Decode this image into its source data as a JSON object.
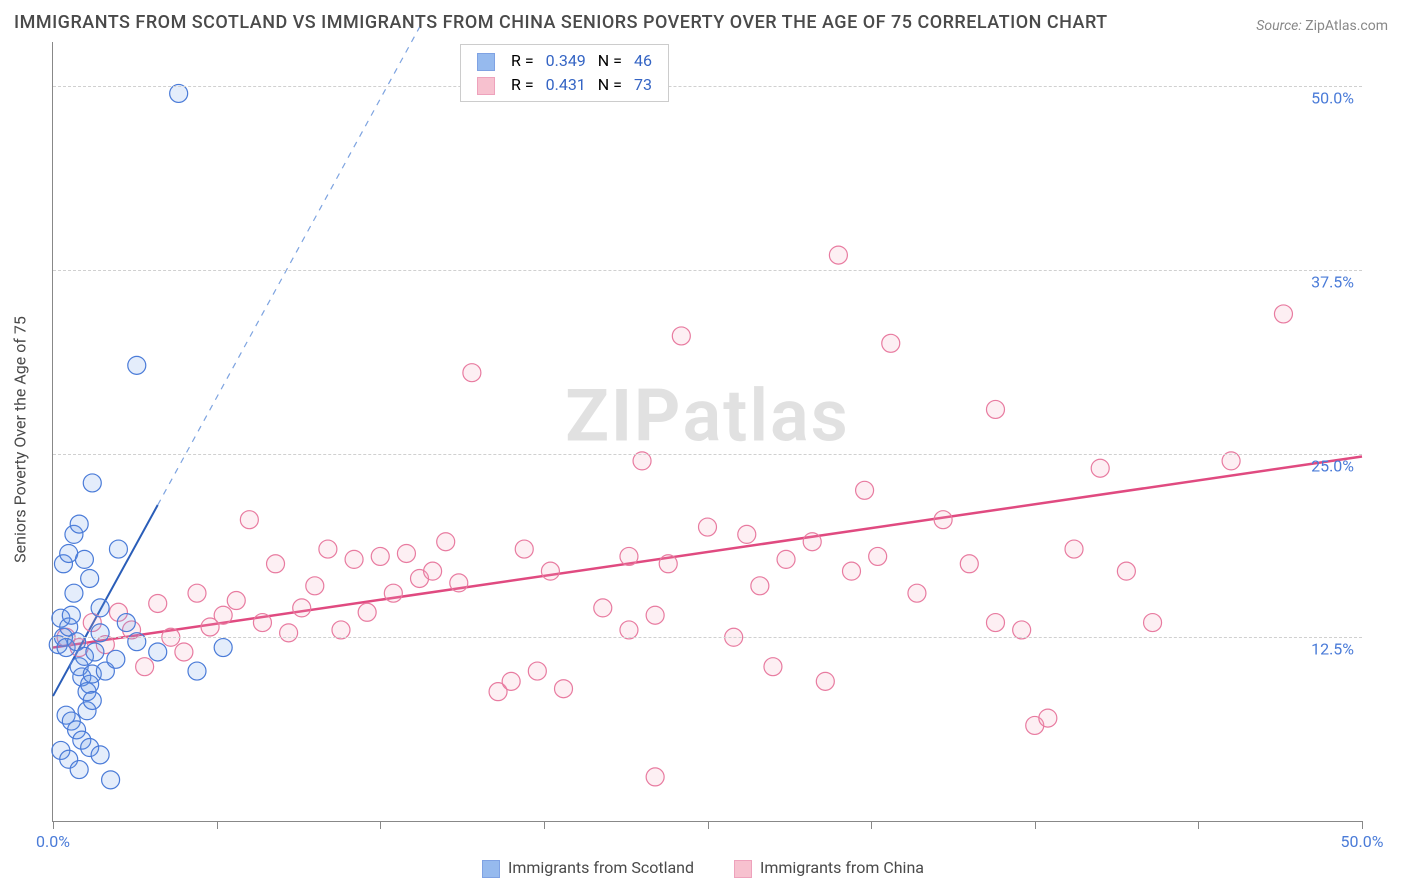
{
  "title": "IMMIGRANTS FROM SCOTLAND VS IMMIGRANTS FROM CHINA SENIORS POVERTY OVER THE AGE OF 75 CORRELATION CHART",
  "source_label": "Source:",
  "source_value": "ZipAtlas.com",
  "y_axis_label": "Seniors Poverty Over the Age of 75",
  "watermark_a": "ZIP",
  "watermark_b": "atlas",
  "chart": {
    "type": "scatter",
    "x_min": 0.0,
    "x_max": 50.0,
    "y_min": 0.0,
    "y_max": 53.0,
    "y_ticks": [
      12.5,
      25.0,
      37.5,
      50.0
    ],
    "y_tick_labels": [
      "12.5%",
      "25.0%",
      "37.5%",
      "50.0%"
    ],
    "x_ticks": [
      0,
      6.25,
      12.5,
      18.75,
      25,
      31.25,
      37.5,
      43.75,
      50
    ],
    "x_tick_label_left": "0.0%",
    "x_tick_label_right": "50.0%",
    "background_color": "#ffffff",
    "grid_color": "#d0d0d0",
    "axis_color": "#888888",
    "tick_label_color": "#4a7bd8",
    "marker_radius": 9,
    "marker_stroke_width": 1.2,
    "marker_fill_opacity": 0.18,
    "series_a": {
      "name": "Immigrants from Scotland",
      "color": "#6b9de8",
      "stroke": "#4a7bd8",
      "R": "0.349",
      "N": "46",
      "trend_color": "#2a5db8",
      "trend_width": 2,
      "trend_dash_color": "#7da3e0",
      "trend": {
        "x1": 0.0,
        "y1": 8.5,
        "x2": 4.0,
        "y2": 21.5,
        "x2_dash": 14.0,
        "y2_dash": 54.0
      },
      "points": [
        [
          0.2,
          12.0
        ],
        [
          0.3,
          13.8
        ],
        [
          0.4,
          12.5
        ],
        [
          0.5,
          11.8
        ],
        [
          0.6,
          13.2
        ],
        [
          0.7,
          14.0
        ],
        [
          0.8,
          15.5
        ],
        [
          0.9,
          12.2
        ],
        [
          1.0,
          10.5
        ],
        [
          1.1,
          9.8
        ],
        [
          1.2,
          11.2
        ],
        [
          1.3,
          8.8
        ],
        [
          1.4,
          9.3
        ],
        [
          1.5,
          10.0
        ],
        [
          0.4,
          17.5
        ],
        [
          0.6,
          18.2
        ],
        [
          0.8,
          19.5
        ],
        [
          1.0,
          20.2
        ],
        [
          1.2,
          17.8
        ],
        [
          1.4,
          16.5
        ],
        [
          0.5,
          7.2
        ],
        [
          0.7,
          6.8
        ],
        [
          0.9,
          6.2
        ],
        [
          1.1,
          5.5
        ],
        [
          1.3,
          7.5
        ],
        [
          1.5,
          8.2
        ],
        [
          0.3,
          4.8
        ],
        [
          0.6,
          4.2
        ],
        [
          1.0,
          3.5
        ],
        [
          1.4,
          5.0
        ],
        [
          1.8,
          4.5
        ],
        [
          2.2,
          2.8
        ],
        [
          1.6,
          11.5
        ],
        [
          1.8,
          12.8
        ],
        [
          2.0,
          10.2
        ],
        [
          2.4,
          11.0
        ],
        [
          2.8,
          13.5
        ],
        [
          3.2,
          12.2
        ],
        [
          4.0,
          11.5
        ],
        [
          5.5,
          10.2
        ],
        [
          6.5,
          11.8
        ],
        [
          1.5,
          23.0
        ],
        [
          3.2,
          31.0
        ],
        [
          4.8,
          49.5
        ],
        [
          2.5,
          18.5
        ],
        [
          1.8,
          14.5
        ]
      ]
    },
    "series_b": {
      "name": "Immigrants from China",
      "color": "#f5a8bc",
      "stroke": "#e87ba0",
      "R": "0.431",
      "N": "73",
      "trend_color": "#e04a80",
      "trend_width": 2.5,
      "trend": {
        "x1": 0.0,
        "y1": 11.8,
        "x2": 50.0,
        "y2": 24.8
      },
      "points": [
        [
          0.5,
          12.5
        ],
        [
          1.0,
          11.8
        ],
        [
          1.5,
          13.5
        ],
        [
          2.0,
          12.0
        ],
        [
          2.5,
          14.2
        ],
        [
          3.0,
          13.0
        ],
        [
          3.5,
          10.5
        ],
        [
          4.0,
          14.8
        ],
        [
          4.5,
          12.5
        ],
        [
          5.0,
          11.5
        ],
        [
          5.5,
          15.5
        ],
        [
          6.0,
          13.2
        ],
        [
          6.5,
          14.0
        ],
        [
          7.0,
          15.0
        ],
        [
          7.5,
          20.5
        ],
        [
          8.0,
          13.5
        ],
        [
          8.5,
          17.5
        ],
        [
          9.0,
          12.8
        ],
        [
          9.5,
          14.5
        ],
        [
          10.0,
          16.0
        ],
        [
          10.5,
          18.5
        ],
        [
          11.0,
          13.0
        ],
        [
          11.5,
          17.8
        ],
        [
          12.0,
          14.2
        ],
        [
          12.5,
          18.0
        ],
        [
          13.0,
          15.5
        ],
        [
          13.5,
          18.2
        ],
        [
          14.0,
          16.5
        ],
        [
          14.5,
          17.0
        ],
        [
          15.0,
          19.0
        ],
        [
          15.5,
          16.2
        ],
        [
          16.0,
          30.5
        ],
        [
          17.0,
          8.8
        ],
        [
          17.5,
          9.5
        ],
        [
          18.0,
          18.5
        ],
        [
          18.5,
          10.2
        ],
        [
          19.0,
          17.0
        ],
        [
          19.5,
          9.0
        ],
        [
          21.0,
          14.5
        ],
        [
          22.0,
          18.0
        ],
        [
          22.5,
          24.5
        ],
        [
          23.0,
          14.0
        ],
        [
          23.5,
          17.5
        ],
        [
          24.0,
          33.0
        ],
        [
          25.0,
          20.0
        ],
        [
          26.0,
          12.5
        ],
        [
          26.5,
          19.5
        ],
        [
          27.0,
          16.0
        ],
        [
          27.5,
          10.5
        ],
        [
          28.0,
          17.8
        ],
        [
          29.0,
          19.0
        ],
        [
          29.5,
          9.5
        ],
        [
          30.0,
          38.5
        ],
        [
          30.5,
          17.0
        ],
        [
          31.0,
          22.5
        ],
        [
          31.5,
          18.0
        ],
        [
          32.0,
          32.5
        ],
        [
          33.0,
          15.5
        ],
        [
          34.0,
          20.5
        ],
        [
          35.0,
          17.5
        ],
        [
          36.0,
          28.0
        ],
        [
          37.0,
          13.0
        ],
        [
          37.5,
          6.5
        ],
        [
          38.0,
          7.0
        ],
        [
          39.0,
          18.5
        ],
        [
          40.0,
          24.0
        ],
        [
          41.0,
          17.0
        ],
        [
          42.0,
          13.5
        ],
        [
          23.0,
          3.0
        ],
        [
          36.0,
          13.5
        ],
        [
          45.0,
          24.5
        ],
        [
          47.0,
          34.5
        ],
        [
          22.0,
          13.0
        ]
      ]
    }
  },
  "legend_top": {
    "R_label": "R =",
    "N_label": "N ="
  },
  "legend_bottom": {
    "a": "Immigrants from Scotland",
    "b": "Immigrants from China"
  }
}
